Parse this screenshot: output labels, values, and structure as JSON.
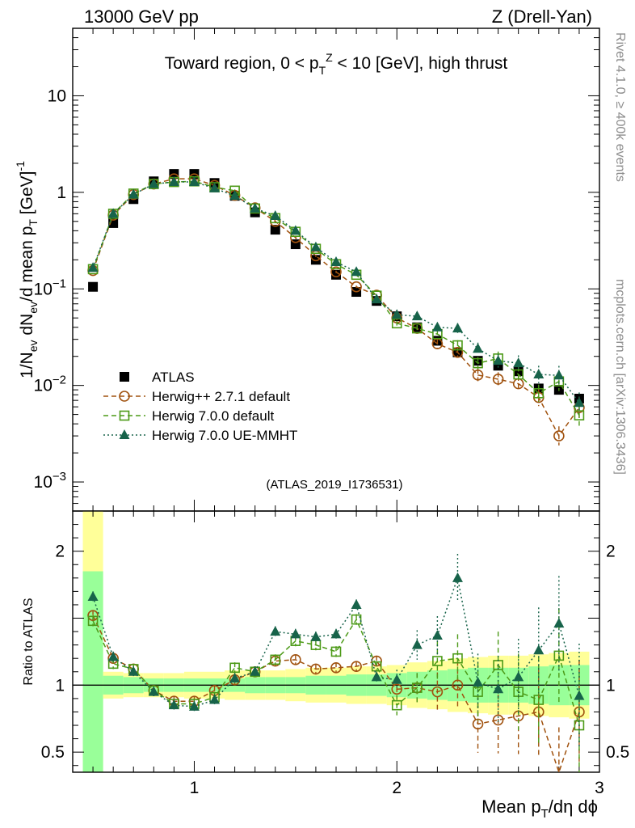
{
  "header": {
    "left": "13000 GeV pp",
    "right": "Z (Drell-Yan)"
  },
  "side_labels": {
    "rivet": "Rivet 4.1.0, ≥ 400k events",
    "mcplots": "mcplots.cern.ch [arXiv:1306.3436]"
  },
  "colors": {
    "atlas": "#000000",
    "herwig271": "#a0520f",
    "herwig700": "#4c9a17",
    "ueMMHT": "#17634a",
    "band_inner": "#99ff99",
    "band_outer": "#ffff99"
  },
  "chart_data": [
    {
      "type": "scatter",
      "panel": "main",
      "title": "Toward region, 0 < p_T^Z < 10 [GeV], high thrust",
      "ylabel": "1/N_ev dN_ev/d mean p_T [GeV]^-1",
      "xlabel": "",
      "yscale": "log",
      "xlim": [
        0.4,
        3.0
      ],
      "ylim": [
        0.0005,
        50
      ],
      "xticks": [
        1,
        2,
        3
      ],
      "yticks": [
        {
          "value": 0.001,
          "mant": "10",
          "exp": "−3"
        },
        {
          "value": 0.01,
          "mant": "10",
          "exp": "−2"
        },
        {
          "value": 0.1,
          "mant": "10",
          "exp": "−1"
        },
        {
          "value": 1,
          "mant": "1",
          "exp": ""
        },
        {
          "value": 10,
          "mant": "10",
          "exp": ""
        }
      ],
      "watermark": "(ATLAS_2019_I1736531)",
      "x": [
        0.5,
        0.6,
        0.7,
        0.8,
        0.9,
        1.0,
        1.1,
        1.2,
        1.3,
        1.4,
        1.5,
        1.6,
        1.7,
        1.8,
        1.9,
        2.0,
        2.1,
        2.2,
        2.3,
        2.4,
        2.5,
        2.6,
        2.7,
        2.8,
        2.9
      ],
      "series": [
        {
          "name": "ATLAS",
          "key": "atlas",
          "marker": "square-filled",
          "values": [
            0.105,
            0.48,
            0.85,
            1.3,
            1.55,
            1.55,
            1.25,
            0.92,
            0.62,
            0.41,
            0.29,
            0.2,
            0.14,
            0.093,
            0.075,
            0.052,
            0.04,
            0.029,
            0.022,
            0.018,
            0.016,
            0.014,
            0.0093,
            0.009,
            0.0073
          ]
        },
        {
          "name": "Herwig++ 2.7.1 default",
          "key": "herwig271",
          "marker": "circle-open",
          "line": "dashed",
          "values": [
            0.155,
            0.58,
            0.95,
            1.22,
            1.38,
            1.38,
            1.18,
            0.93,
            0.69,
            0.5,
            0.34,
            0.22,
            0.15,
            0.105,
            0.086,
            0.05,
            0.039,
            0.027,
            0.022,
            0.0128,
            0.0116,
            0.0104,
            0.0075,
            0.003,
            0.0059
          ]
        },
        {
          "name": "Herwig 7.0.0 default",
          "key": "herwig700",
          "marker": "square-open",
          "line": "dashed",
          "values": [
            0.16,
            0.6,
            0.97,
            1.22,
            1.28,
            1.3,
            1.13,
            1.04,
            0.68,
            0.54,
            0.39,
            0.26,
            0.18,
            0.14,
            0.085,
            0.044,
            0.039,
            0.034,
            0.026,
            0.017,
            0.019,
            0.013,
            0.0083,
            0.011,
            0.0049
          ]
        },
        {
          "name": "Herwig 7.0.0 UE-MMHT",
          "key": "ueMMHT",
          "marker": "triangle-filled",
          "line": "dotted",
          "values": [
            0.165,
            0.6,
            0.95,
            1.22,
            1.28,
            1.28,
            1.1,
            0.92,
            0.68,
            0.57,
            0.4,
            0.27,
            0.19,
            0.15,
            0.078,
            0.054,
            0.052,
            0.04,
            0.039,
            0.024,
            0.018,
            0.017,
            0.013,
            0.0127,
            0.0066
          ]
        }
      ],
      "legend": "bottom-left"
    },
    {
      "type": "scatter",
      "panel": "ratio",
      "ylabel": "Ratio to ATLAS",
      "xlabel": "Mean p_T/dη dϕ",
      "xlim": [
        0.4,
        3.0
      ],
      "ylim": [
        0.35,
        2.3
      ],
      "xticks": [
        1,
        2,
        3
      ],
      "yticks": [
        0.5,
        1,
        2
      ],
      "x": [
        0.5,
        0.6,
        0.7,
        0.8,
        0.9,
        1.0,
        1.1,
        1.2,
        1.3,
        1.4,
        1.5,
        1.6,
        1.7,
        1.8,
        1.9,
        2.0,
        2.1,
        2.2,
        2.3,
        2.4,
        2.5,
        2.6,
        2.7,
        2.8,
        2.9
      ],
      "bands": {
        "inner_half_width": [
          0.85,
          0.07,
          0.06,
          0.05,
          0.05,
          0.05,
          0.05,
          0.05,
          0.06,
          0.06,
          0.06,
          0.07,
          0.07,
          0.08,
          0.08,
          0.09,
          0.1,
          0.11,
          0.12,
          0.13,
          0.13,
          0.13,
          0.14,
          0.15,
          0.15
        ],
        "outer_half_width": [
          1.3,
          0.1,
          0.09,
          0.09,
          0.09,
          0.1,
          0.1,
          0.11,
          0.11,
          0.11,
          0.12,
          0.13,
          0.13,
          0.14,
          0.14,
          0.15,
          0.17,
          0.18,
          0.2,
          0.21,
          0.22,
          0.22,
          0.23,
          0.24,
          0.25
        ]
      },
      "series": [
        {
          "name": "Herwig++ 2.7.1 default",
          "key": "herwig271",
          "marker": "circle-open",
          "line": "dashed",
          "values": [
            1.52,
            1.2,
            1.12,
            0.96,
            0.88,
            0.88,
            0.96,
            1.04,
            1.1,
            1.18,
            1.19,
            1.12,
            1.13,
            1.14,
            1.18,
            0.97,
            0.98,
            0.95,
            1.0,
            0.71,
            0.74,
            0.77,
            0.8,
            0.33,
            0.8
          ]
        },
        {
          "name": "Herwig 7.0.0 default",
          "key": "herwig700",
          "marker": "square-open",
          "line": "dashed",
          "values": [
            1.48,
            1.16,
            1.12,
            0.96,
            0.86,
            0.86,
            0.91,
            1.13,
            1.1,
            1.19,
            1.33,
            1.3,
            1.25,
            1.49,
            1.14,
            0.85,
            0.98,
            1.18,
            1.2,
            0.95,
            1.15,
            0.95,
            0.89,
            1.22,
            0.7
          ]
        },
        {
          "name": "Herwig 7.0.0 UE-MMHT",
          "key": "ueMMHT",
          "marker": "triangle-filled",
          "line": "dotted",
          "values": [
            1.66,
            1.21,
            1.1,
            0.95,
            0.85,
            0.84,
            0.89,
            1.05,
            1.1,
            1.4,
            1.38,
            1.36,
            1.38,
            1.6,
            1.06,
            1.04,
            1.3,
            1.37,
            1.8,
            1.02,
            0.97,
            1.06,
            1.26,
            1.46,
            0.92
          ]
        }
      ]
    }
  ]
}
